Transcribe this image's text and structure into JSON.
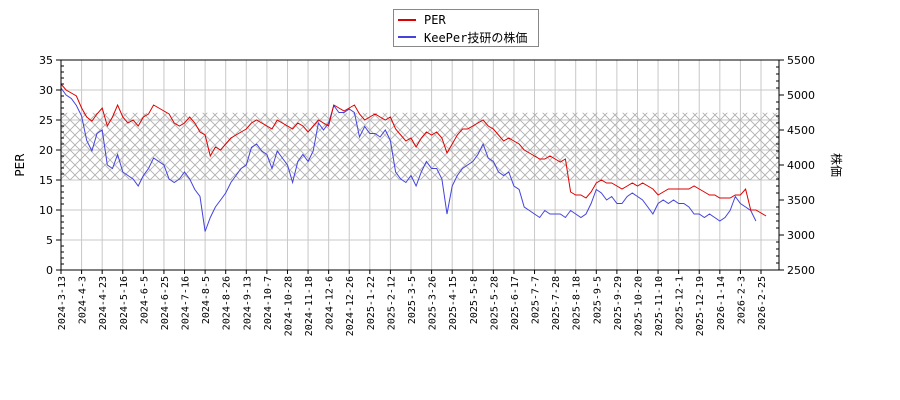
{
  "legend": {
    "items": [
      {
        "label": "PER",
        "color": "#dd0000"
      },
      {
        "label": "KeePer技研の株価",
        "color": "#4444dd"
      }
    ]
  },
  "axes": {
    "left_title": "PER",
    "right_title": "株価"
  },
  "chart_data": {
    "type": "line",
    "title": "",
    "xlabel": "",
    "ylabel": "PER",
    "y2label": "株価",
    "ylim": [
      0,
      35
    ],
    "y2lim": [
      2500,
      5500
    ],
    "yticks": [
      0,
      5,
      10,
      15,
      20,
      25,
      30,
      35
    ],
    "y2ticks": [
      2500,
      3000,
      3500,
      4000,
      4500,
      5000,
      5500
    ],
    "grid": true,
    "legend_position": "top-center",
    "band": {
      "description": "hatched PER reference band",
      "from": 15,
      "to": 26.2
    },
    "x_tick_labels": [
      "2024-3-13",
      "2024-4-3",
      "2024-4-23",
      "2024-5-16",
      "2024-6-5",
      "2024-6-25",
      "2024-7-16",
      "2024-8-5",
      "2024-8-26",
      "2024-9-13",
      "2024-10-7",
      "2024-10-28",
      "2024-11-18",
      "2024-12-6",
      "2024-12-26",
      "2025-1-22",
      "2025-2-12",
      "2025-3-5",
      "2025-3-26",
      "2025-4-15",
      "2025-5-8",
      "2025-5-28",
      "2025-6-17",
      "2025-7-7",
      "2025-7-28",
      "2025-8-18",
      "2025-9-5",
      "2025-9-29",
      "2025-10-20",
      "2025-11-10",
      "2025-12-1",
      "2025-12-19",
      "2026-1-14",
      "2026-2-3",
      "2026-2-25"
    ],
    "series": [
      {
        "name": "PER",
        "axis": "left",
        "color": "#dd0000",
        "x_index": [
          0,
          0.25,
          0.5,
          0.75,
          1,
          1.25,
          1.5,
          1.75,
          2,
          2.25,
          2.5,
          2.75,
          3,
          3.25,
          3.5,
          3.75,
          4,
          4.25,
          4.5,
          4.75,
          5,
          5.25,
          5.5,
          5.75,
          6,
          6.25,
          6.5,
          6.75,
          7,
          7.25,
          7.5,
          7.75,
          8,
          8.25,
          8.5,
          8.75,
          9,
          9.25,
          9.5,
          9.75,
          10,
          10.25,
          10.5,
          10.75,
          11,
          11.25,
          11.5,
          11.75,
          12,
          12.25,
          12.5,
          12.75,
          13,
          13.25,
          13.5,
          13.75,
          14,
          14.25,
          14.5,
          14.75,
          15,
          15.25,
          15.5,
          15.75,
          16,
          16.25,
          16.5,
          16.75,
          17,
          17.25,
          17.5,
          17.75,
          18,
          18.25,
          18.5,
          18.75,
          19,
          19.25,
          19.5,
          19.75,
          20,
          20.25,
          20.5,
          20.75,
          21,
          21.25,
          21.5,
          21.75,
          22,
          22.25,
          22.5,
          22.75,
          23,
          23.25,
          23.5,
          23.75,
          24,
          24.25,
          24.5,
          24.75,
          25,
          25.25,
          25.5,
          25.75,
          26,
          26.25,
          26.5,
          26.75,
          27,
          27.25,
          27.5,
          27.75,
          28,
          28.25,
          28.5,
          28.75,
          29,
          29.25,
          29.5,
          29.75,
          30,
          30.25,
          30.5,
          30.75,
          31,
          31.25,
          31.5,
          31.75,
          32,
          32.25,
          32.5,
          32.75,
          33,
          33.25,
          33.5,
          33.75,
          34,
          34.25,
          34.5,
          34.9
        ],
        "values": [
          31.0,
          30.0,
          29.5,
          29.0,
          27.0,
          25.5,
          24.8,
          26.0,
          27.0,
          24.0,
          25.5,
          27.5,
          25.5,
          24.5,
          25.0,
          24.0,
          25.5,
          26.0,
          27.5,
          27.0,
          26.5,
          26.0,
          24.5,
          24.0,
          24.5,
          25.5,
          24.5,
          23.0,
          22.5,
          19.0,
          20.5,
          20.0,
          21.0,
          22.0,
          22.5,
          23.0,
          23.5,
          24.5,
          25.0,
          24.5,
          24.0,
          23.5,
          25.0,
          24.5,
          24.0,
          23.5,
          24.5,
          24.0,
          23.0,
          24.0,
          25.0,
          24.5,
          24.0,
          27.5,
          27.0,
          26.5,
          27.0,
          27.5,
          26.0,
          25.0,
          25.5,
          26.0,
          25.5,
          25.0,
          25.5,
          23.5,
          22.5,
          21.5,
          22.0,
          20.5,
          22.0,
          23.0,
          22.5,
          23.0,
          22.0,
          19.5,
          21.0,
          22.5,
          23.5,
          23.5,
          24.0,
          24.5,
          25.0,
          24.0,
          23.5,
          22.5,
          21.5,
          22.0,
          21.5,
          21.0,
          20.0,
          19.5,
          19.0,
          18.5,
          18.5,
          19.0,
          18.5,
          18.0,
          18.5,
          13.0,
          12.5,
          12.5,
          12.0,
          13.0,
          14.5,
          15.0,
          14.5,
          14.5,
          14.0,
          13.5,
          14.0,
          14.5,
          14.0,
          14.5,
          14.0,
          13.5,
          12.5,
          13.0,
          13.5,
          13.5,
          13.5,
          13.5,
          13.5,
          14.0,
          13.5,
          13.0,
          12.5,
          12.5,
          12.0,
          12.0,
          12.0,
          12.5,
          12.5,
          13.5,
          10.0,
          10.0,
          9.5,
          9.0
        ]
      },
      {
        "name": "KeePer技研の株価",
        "axis": "right",
        "color": "#4444dd",
        "x_index": [
          0,
          0.25,
          0.5,
          0.75,
          1,
          1.25,
          1.5,
          1.75,
          2,
          2.25,
          2.5,
          2.75,
          3,
          3.25,
          3.5,
          3.75,
          4,
          4.25,
          4.5,
          4.75,
          5,
          5.25,
          5.5,
          5.75,
          6,
          6.25,
          6.5,
          6.75,
          7,
          7.25,
          7.5,
          7.75,
          8,
          8.25,
          8.5,
          8.75,
          9,
          9.25,
          9.5,
          9.75,
          10,
          10.25,
          10.5,
          10.75,
          11,
          11.25,
          11.5,
          11.75,
          12,
          12.25,
          12.5,
          12.75,
          13,
          13.25,
          13.5,
          13.75,
          14,
          14.25,
          14.5,
          14.75,
          15,
          15.25,
          15.5,
          15.75,
          16,
          16.25,
          16.5,
          16.75,
          17,
          17.25,
          17.5,
          17.75,
          18,
          18.25,
          18.5,
          18.75,
          19,
          19.25,
          19.5,
          19.75,
          20,
          20.25,
          20.5,
          20.75,
          21,
          21.25,
          21.5,
          21.75,
          22,
          22.25,
          22.5,
          22.75,
          23,
          23.25,
          23.5,
          23.75,
          24,
          24.25,
          24.5,
          24.75,
          25,
          25.25,
          25.5,
          25.75,
          26,
          26.25,
          26.5,
          26.75,
          27,
          27.25,
          27.5,
          27.75,
          28,
          28.25,
          28.5,
          28.75,
          29,
          29.25,
          29.5,
          29.75,
          30,
          30.25,
          30.5,
          30.75,
          31,
          31.25,
          31.5,
          31.75,
          32,
          32.25,
          32.5,
          32.75,
          33,
          33.25,
          33.5,
          33.75,
          34,
          34.25,
          34.5,
          34.9
        ],
        "values": [
          5100,
          5000,
          4950,
          4850,
          4700,
          4350,
          4200,
          4450,
          4500,
          4000,
          3950,
          4150,
          3900,
          3850,
          3800,
          3700,
          3850,
          3950,
          4100,
          4050,
          4000,
          3800,
          3750,
          3800,
          3900,
          3800,
          3650,
          3550,
          3050,
          3250,
          3400,
          3500,
          3600,
          3750,
          3850,
          3950,
          4000,
          4250,
          4300,
          4200,
          4150,
          3950,
          4200,
          4100,
          4000,
          3750,
          4050,
          4150,
          4050,
          4200,
          4600,
          4500,
          4600,
          4850,
          4750,
          4750,
          4800,
          4750,
          4400,
          4550,
          4450,
          4450,
          4400,
          4500,
          4350,
          3900,
          3800,
          3750,
          3850,
          3700,
          3900,
          4050,
          3950,
          3950,
          3800,
          3300,
          3700,
          3850,
          3950,
          4000,
          4050,
          4150,
          4300,
          4100,
          4050,
          3900,
          3850,
          3900,
          3700,
          3650,
          3400,
          3350,
          3300,
          3250,
          3350,
          3300,
          3300,
          3300,
          3250,
          3350,
          3300,
          3250,
          3300,
          3450,
          3650,
          3600,
          3500,
          3550,
          3450,
          3450,
          3550,
          3600,
          3550,
          3500,
          3400,
          3300,
          3450,
          3500,
          3450,
          3500,
          3450,
          3450,
          3400,
          3300,
          3300,
          3250,
          3300,
          3250,
          3200,
          3250,
          3350,
          3550,
          3450,
          3400,
          3350,
          3200
        ]
      }
    ]
  }
}
